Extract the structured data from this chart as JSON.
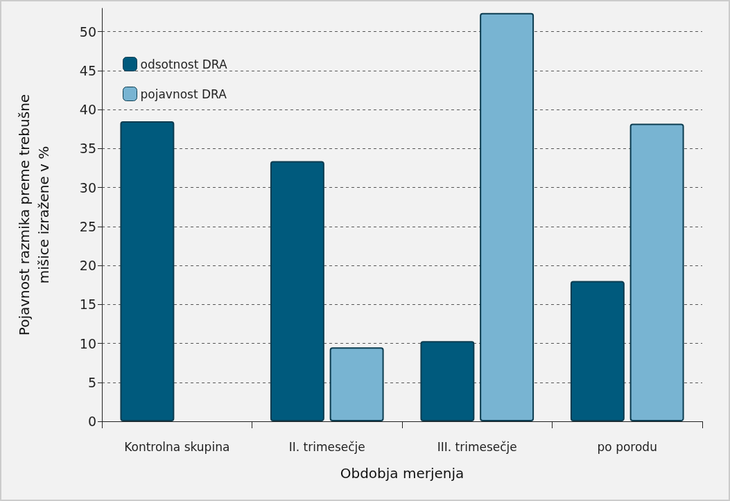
{
  "chart_data": {
    "type": "bar",
    "xlabel": "Obdobja merjenja",
    "ylabel": "Pojavnost razmika preme trebušne\nmišice izražene v %",
    "categories": [
      "Kontrolna skupina",
      "II. trimesečje",
      "III. trimesečje",
      "po porodu"
    ],
    "series": [
      {
        "name": "odsotnost DRA",
        "color": "#005a7d",
        "values": [
          38.5,
          33.4,
          10.3,
          18.0
        ]
      },
      {
        "name": "pojavnost DRA",
        "color": "#78b4d2",
        "values": [
          null,
          9.5,
          52.4,
          38.2
        ]
      }
    ],
    "ylim": [
      0,
      53
    ],
    "yticks": [
      0,
      5,
      10,
      15,
      20,
      25,
      30,
      35,
      40,
      45,
      50
    ],
    "grid": "y",
    "legend": "top left"
  }
}
